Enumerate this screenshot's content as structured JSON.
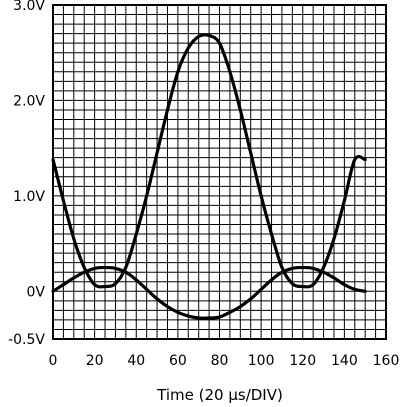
{
  "chart_data": {
    "type": "line",
    "xlabel": "Time (20 µs/DIV)",
    "xlim": [
      0,
      160
    ],
    "ylim": [
      -0.5,
      3.0
    ],
    "x_ticks": [
      0,
      20,
      40,
      60,
      80,
      100,
      120,
      140,
      160
    ],
    "y_ticks": [
      {
        "value": 3.0,
        "label": "3.0V"
      },
      {
        "value": 2.0,
        "label": "2.0V"
      },
      {
        "value": 1.0,
        "label": "1.0V"
      },
      {
        "value": 0.0,
        "label": "0V"
      },
      {
        "value": -0.5,
        "label": "-0.5V"
      }
    ],
    "grid": true,
    "series": [
      {
        "x": [
          0,
          5,
          10,
          15,
          20,
          25,
          30,
          35,
          40,
          45,
          50,
          55,
          60,
          65,
          70,
          75,
          80,
          85,
          90,
          95,
          100,
          105,
          110,
          115,
          120,
          125,
          130,
          135,
          140,
          145,
          150
        ],
        "values": [
          1.38,
          0.95,
          0.55,
          0.25,
          0.07,
          0.05,
          0.08,
          0.25,
          0.6,
          1.0,
          1.45,
          1.9,
          2.3,
          2.55,
          2.67,
          2.68,
          2.6,
          2.3,
          1.9,
          1.45,
          1.0,
          0.6,
          0.25,
          0.08,
          0.05,
          0.07,
          0.25,
          0.55,
          0.95,
          1.38,
          1.38
        ]
      },
      {
        "x": [
          0,
          5,
          10,
          15,
          20,
          25,
          30,
          35,
          40,
          45,
          50,
          55,
          60,
          65,
          70,
          75,
          80,
          85,
          90,
          95,
          100,
          105,
          110,
          115,
          120,
          125,
          130,
          135,
          140,
          145,
          150
        ],
        "values": [
          0.0,
          0.07,
          0.14,
          0.2,
          0.24,
          0.25,
          0.24,
          0.2,
          0.12,
          0.02,
          -0.08,
          -0.16,
          -0.22,
          -0.26,
          -0.28,
          -0.28,
          -0.27,
          -0.22,
          -0.16,
          -0.08,
          0.02,
          0.12,
          0.2,
          0.24,
          0.25,
          0.24,
          0.2,
          0.14,
          0.07,
          0.02,
          0.0
        ]
      }
    ]
  }
}
